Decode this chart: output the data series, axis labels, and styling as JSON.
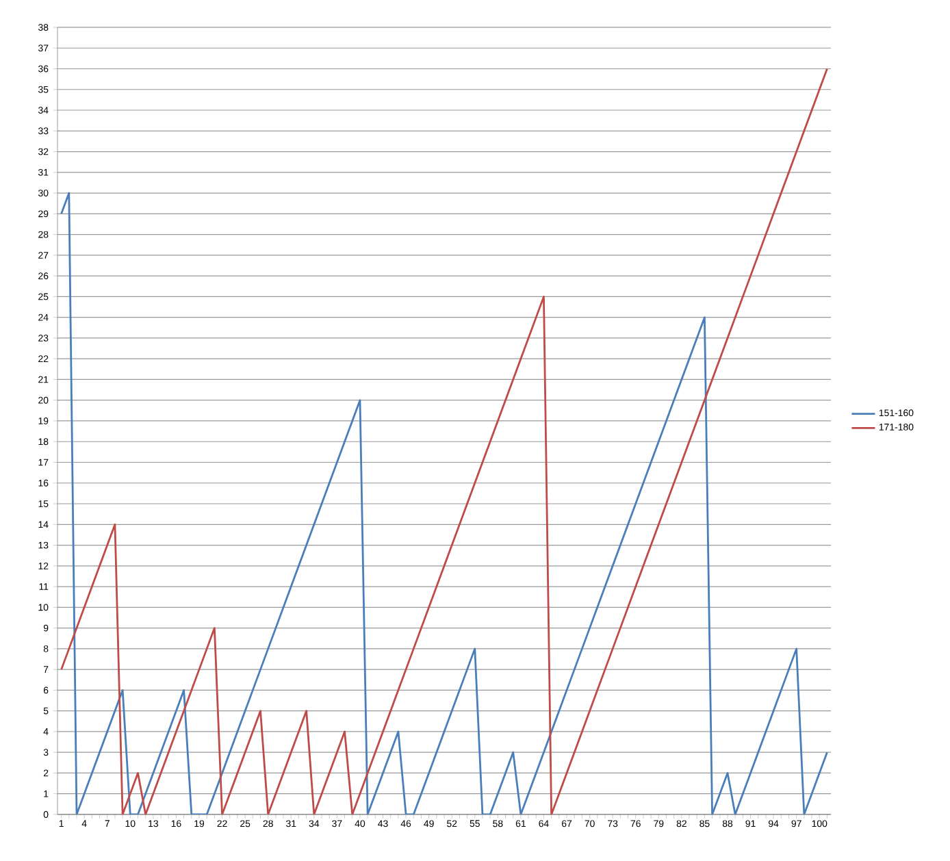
{
  "chart_data": {
    "type": "line",
    "categories": [
      "1",
      null,
      null,
      "4",
      null,
      null,
      "7",
      null,
      null,
      "10",
      null,
      null,
      "13",
      null,
      null,
      "16",
      null,
      null,
      "19",
      null,
      null,
      "22",
      null,
      null,
      "25",
      null,
      null,
      "28",
      null,
      null,
      "31",
      null,
      null,
      "34",
      null,
      null,
      "37",
      null,
      null,
      "40",
      null,
      null,
      "43",
      null,
      null,
      "46",
      null,
      null,
      "49",
      null,
      null,
      "52",
      null,
      null,
      "55",
      null,
      null,
      "58",
      null,
      null,
      "61",
      null,
      null,
      "64",
      null,
      null,
      "67",
      null,
      null,
      "70",
      null,
      null,
      "73",
      null,
      null,
      "76",
      null,
      null,
      "79",
      null,
      null,
      "82",
      null,
      null,
      "85",
      null,
      null,
      "88",
      null,
      null,
      "91",
      null,
      null,
      "94",
      null,
      null,
      "97",
      null,
      null,
      "100",
      null
    ],
    "series": [
      {
        "name": "151-160",
        "color": "#4a7ebb",
        "values": [
          29,
          30,
          0,
          1,
          2,
          3,
          4,
          5,
          6,
          0,
          0,
          1,
          2,
          3,
          4,
          5,
          6,
          0,
          0,
          0,
          1,
          2,
          3,
          4,
          5,
          6,
          7,
          8,
          9,
          10,
          11,
          12,
          13,
          14,
          15,
          16,
          17,
          18,
          19,
          20,
          0,
          1,
          2,
          3,
          4,
          0,
          0,
          1,
          2,
          3,
          4,
          5,
          6,
          7,
          8,
          0,
          0,
          1,
          2,
          3,
          0,
          1,
          2,
          3,
          4,
          5,
          6,
          7,
          8,
          9,
          10,
          11,
          12,
          13,
          14,
          15,
          16,
          17,
          18,
          19,
          20,
          21,
          22,
          23,
          24,
          0,
          1,
          2,
          0,
          1,
          2,
          3,
          4,
          5,
          6,
          7,
          8,
          0,
          1,
          2,
          3
        ]
      },
      {
        "name": "171-180",
        "color": "#be4b48",
        "values": [
          7,
          8,
          9,
          10,
          11,
          12,
          13,
          14,
          0,
          1,
          2,
          0,
          1,
          2,
          3,
          4,
          5,
          6,
          7,
          8,
          9,
          0,
          1,
          2,
          3,
          4,
          5,
          0,
          1,
          2,
          3,
          4,
          5,
          0,
          1,
          2,
          3,
          4,
          0,
          1,
          2,
          3,
          4,
          5,
          6,
          7,
          8,
          9,
          10,
          11,
          12,
          13,
          14,
          15,
          16,
          17,
          18,
          19,
          20,
          21,
          22,
          23,
          24,
          25,
          0,
          1,
          2,
          3,
          4,
          5,
          6,
          7,
          8,
          9,
          10,
          11,
          12,
          13,
          14,
          15,
          16,
          17,
          18,
          19,
          20,
          21,
          22,
          23,
          24,
          25,
          26,
          27,
          28,
          29,
          30,
          31,
          32,
          33,
          34,
          35,
          36
        ]
      }
    ],
    "ylim": [
      0,
      38
    ],
    "yticks": [
      0,
      1,
      2,
      3,
      4,
      5,
      6,
      7,
      8,
      9,
      10,
      11,
      12,
      13,
      14,
      15,
      16,
      17,
      18,
      19,
      20,
      21,
      22,
      23,
      24,
      25,
      26,
      27,
      28,
      29,
      30,
      31,
      32,
      33,
      34,
      35,
      36,
      37,
      38
    ],
    "grid": "y",
    "legend": "right",
    "marker": "none",
    "line_style": "solid"
  }
}
